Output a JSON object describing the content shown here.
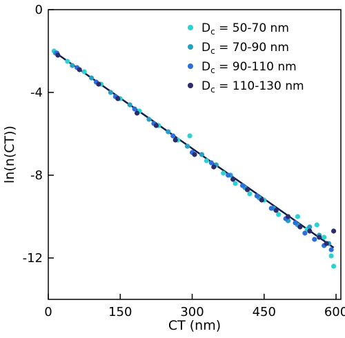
{
  "chart_data": {
    "type": "scatter",
    "xlabel": "CT (nm)",
    "ylabel": "ln(n(CT))",
    "xlim": [
      0,
      610
    ],
    "ylim": [
      -14,
      0
    ],
    "xticks": [
      0,
      150,
      300,
      450,
      600
    ],
    "yticks": [
      0,
      -4,
      -8,
      -12
    ],
    "xtick_labels": [
      "0",
      "150",
      "300",
      "450",
      "600"
    ],
    "ytick_labels": [
      "0",
      "-4",
      "-8",
      "-12"
    ],
    "legend_position": "top-right",
    "grid": false,
    "fit_line": {
      "x": [
        10,
        595
      ],
      "y": [
        -2.0,
        -11.5
      ],
      "color": "#0d1f4d"
    },
    "series": [
      {
        "name_prefix": "D",
        "name_subscript": "c",
        "name_suffix": " = 50-70 nm",
        "color": "#2fd0d0",
        "x": [
          12,
          40,
          75,
          110,
          150,
          190,
          230,
          270,
          295,
          330,
          365,
          390,
          420,
          450,
          480,
          500,
          520,
          540,
          560,
          575,
          590,
          595
        ],
        "y": [
          -2.0,
          -2.5,
          -3.0,
          -3.6,
          -4.3,
          -4.9,
          -5.6,
          -6.3,
          -6.1,
          -7.3,
          -7.9,
          -8.4,
          -8.9,
          -9.2,
          -9.9,
          -10.2,
          -10.0,
          -10.6,
          -10.4,
          -11.0,
          -11.9,
          -12.4
        ]
      },
      {
        "name_prefix": "D",
        "name_subscript": "c",
        "name_suffix": " = 70-90 nm",
        "color": "#2a9fc4",
        "x": [
          15,
          50,
          90,
          130,
          170,
          210,
          250,
          290,
          320,
          350,
          380,
          410,
          440,
          470,
          500,
          520,
          545,
          565,
          585
        ],
        "y": [
          -2.1,
          -2.7,
          -3.3,
          -4.0,
          -4.6,
          -5.3,
          -5.9,
          -6.6,
          -7.0,
          -7.5,
          -8.0,
          -8.6,
          -9.1,
          -9.6,
          -10.2,
          -10.4,
          -10.5,
          -10.9,
          -11.3
        ]
      },
      {
        "name_prefix": "D",
        "name_subscript": "c",
        "name_suffix": " = 90-110 nm",
        "color": "#2a6fdc",
        "x": [
          18,
          60,
          100,
          140,
          180,
          220,
          260,
          300,
          340,
          375,
          405,
          435,
          465,
          495,
          515,
          535,
          555,
          575,
          590
        ],
        "y": [
          -2.1,
          -2.8,
          -3.5,
          -4.2,
          -4.8,
          -5.5,
          -6.1,
          -6.9,
          -7.4,
          -8.0,
          -8.5,
          -9.0,
          -9.6,
          -10.1,
          -10.3,
          -10.8,
          -11.1,
          -11.4,
          -11.6
        ]
      },
      {
        "name_prefix": "D",
        "name_subscript": "c",
        "name_suffix": " = 110-130 nm",
        "color": "#2b2b6e",
        "x": [
          20,
          65,
          105,
          145,
          185,
          225,
          265,
          305,
          345,
          385,
          415,
          445,
          475,
          500,
          525,
          545,
          565,
          580,
          595
        ],
        "y": [
          -2.2,
          -2.9,
          -3.6,
          -4.3,
          -5.0,
          -5.6,
          -6.3,
          -7.0,
          -7.6,
          -8.2,
          -8.7,
          -9.2,
          -9.7,
          -10.0,
          -10.5,
          -10.7,
          -11.0,
          -11.3,
          -10.7
        ]
      }
    ]
  }
}
